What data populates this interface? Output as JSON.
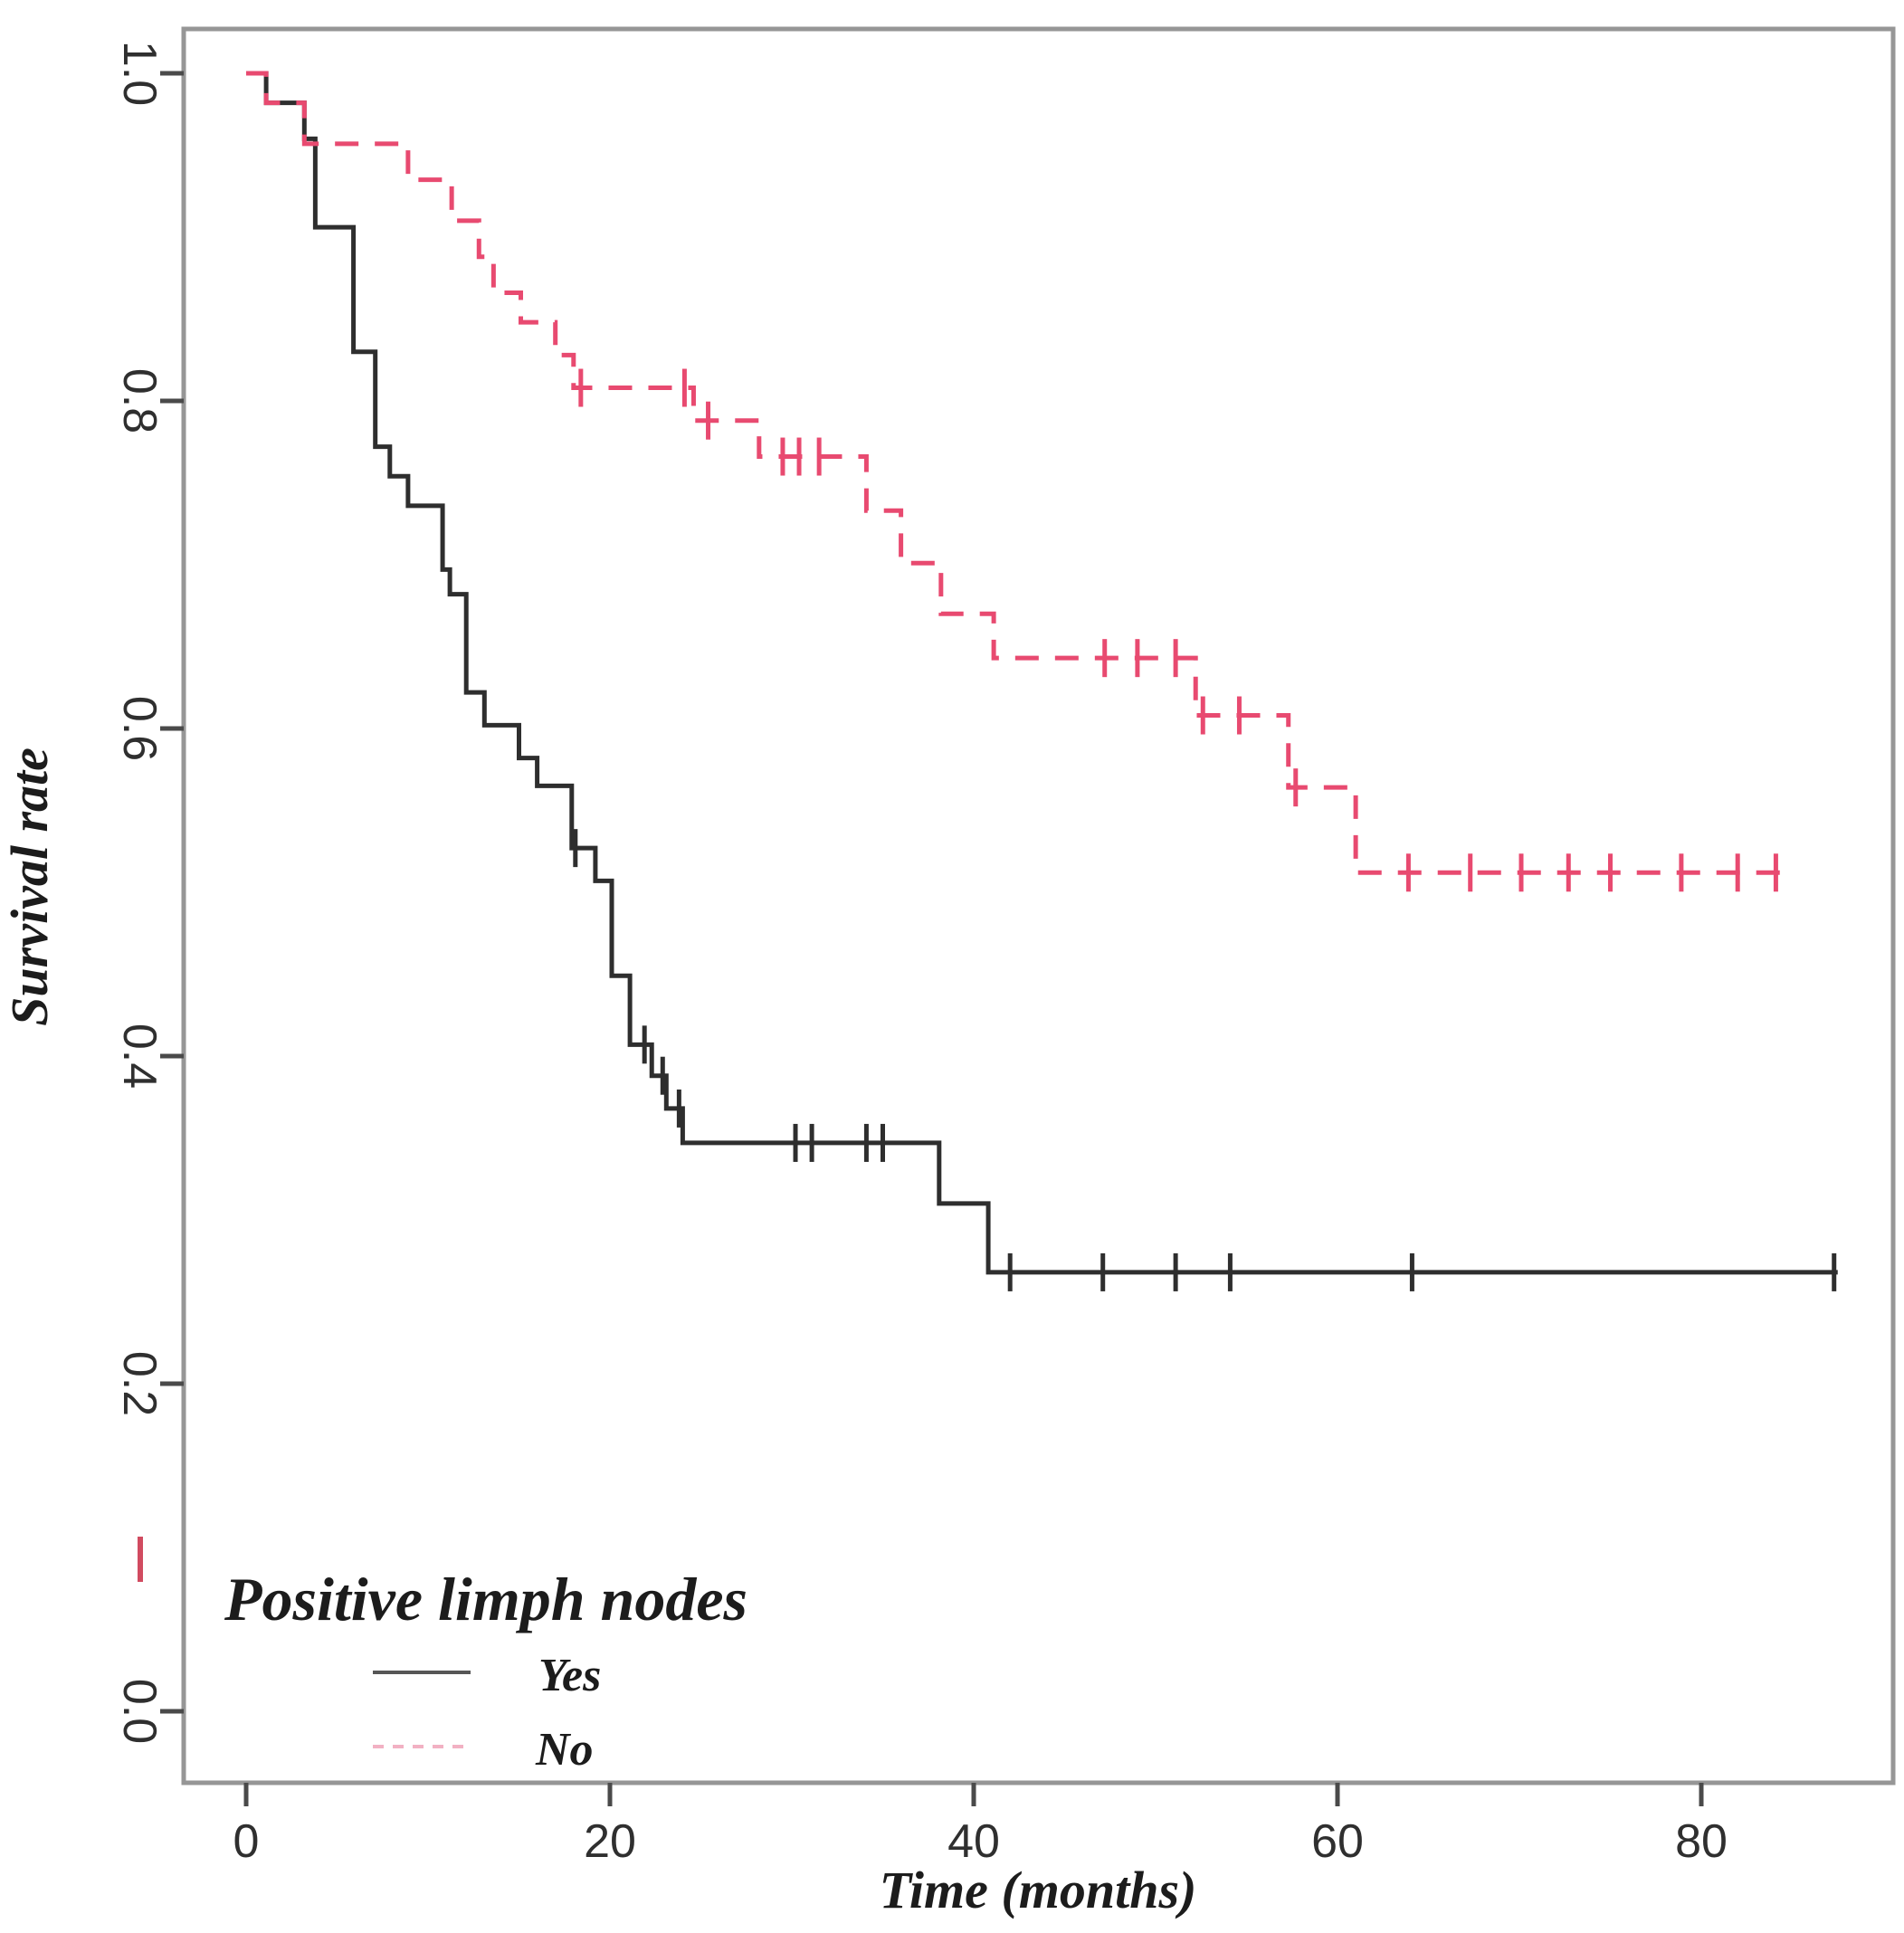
{
  "chart_data": {
    "type": "line",
    "subtype": "kaplan-meier-step",
    "xlabel": "Time (months)",
    "ylabel": "Survival rate",
    "x_tick_labels": [
      "0",
      "20",
      "40",
      "60",
      "80"
    ],
    "x_tick_values": [
      0,
      20,
      40,
      60,
      80
    ],
    "y_tick_labels": [
      "0.0",
      "0.2",
      "0.4",
      "0.6",
      "0.8",
      "1.0"
    ],
    "y_tick_values": [
      0.0,
      0.2,
      0.4,
      0.6,
      0.8,
      1.0
    ],
    "xlim": [
      -3.4,
      90.5
    ],
    "ylim": [
      -0.045,
      1.027
    ],
    "grid": false,
    "legend": {
      "position": "bottom-left",
      "title": "Positive limph nodes",
      "items": [
        {
          "label": "Yes",
          "line_style": "solid",
          "swatch_color": "#565656"
        },
        {
          "label": "No",
          "line_style": "dashed",
          "swatch_color": "#f2b1c3"
        }
      ]
    },
    "series": [
      {
        "name": "Yes",
        "color": "#2e2e2e",
        "line_style": "solid",
        "end_time": 87.5,
        "steps": [
          [
            0,
            1.0
          ],
          [
            1.1,
            0.982
          ],
          [
            3.2,
            0.96
          ],
          [
            3.8,
            0.906
          ],
          [
            5.9,
            0.83
          ],
          [
            7.1,
            0.772
          ],
          [
            7.9,
            0.754
          ],
          [
            8.9,
            0.736
          ],
          [
            10.8,
            0.697
          ],
          [
            11.2,
            0.682
          ],
          [
            12.1,
            0.622
          ],
          [
            13.1,
            0.602
          ],
          [
            15.0,
            0.582
          ],
          [
            16.0,
            0.565
          ],
          [
            17.9,
            0.527
          ],
          [
            19.2,
            0.507
          ],
          [
            20.1,
            0.449
          ],
          [
            21.1,
            0.407
          ],
          [
            22.3,
            0.388
          ],
          [
            23.1,
            0.368
          ],
          [
            24.0,
            0.347
          ],
          [
            38.1,
            0.31
          ],
          [
            40.8,
            0.268
          ]
        ],
        "censors": [
          [
            18.1,
            0.527
          ],
          [
            21.9,
            0.407
          ],
          [
            22.9,
            0.388
          ],
          [
            23.8,
            0.368
          ],
          [
            30.2,
            0.347
          ],
          [
            31.1,
            0.347
          ],
          [
            34.1,
            0.347
          ],
          [
            35.0,
            0.347
          ],
          [
            42.0,
            0.268
          ],
          [
            47.1,
            0.268
          ],
          [
            51.1,
            0.268
          ],
          [
            54.1,
            0.268
          ],
          [
            64.1,
            0.268
          ],
          [
            87.3,
            0.268
          ]
        ]
      },
      {
        "name": "No",
        "color": "#e84a70",
        "line_style": "dashed",
        "end_time": 84.8,
        "steps": [
          [
            0,
            1.0
          ],
          [
            1.1,
            0.982
          ],
          [
            3.2,
            0.957
          ],
          [
            8.9,
            0.935
          ],
          [
            11.3,
            0.91
          ],
          [
            12.8,
            0.888
          ],
          [
            13.6,
            0.866
          ],
          [
            15.1,
            0.848
          ],
          [
            17.0,
            0.828
          ],
          [
            18.0,
            0.808
          ],
          [
            24.6,
            0.788
          ],
          [
            28.2,
            0.766
          ],
          [
            34.1,
            0.733
          ],
          [
            36.0,
            0.701
          ],
          [
            38.2,
            0.67
          ],
          [
            41.1,
            0.643
          ],
          [
            52.2,
            0.608
          ],
          [
            57.3,
            0.564
          ],
          [
            61.0,
            0.512
          ]
        ],
        "censors": [
          [
            18.4,
            0.808
          ],
          [
            24.1,
            0.808
          ],
          [
            25.4,
            0.788
          ],
          [
            29.5,
            0.766
          ],
          [
            30.4,
            0.766
          ],
          [
            31.5,
            0.766
          ],
          [
            47.2,
            0.643
          ],
          [
            49.0,
            0.643
          ],
          [
            51.1,
            0.643
          ],
          [
            52.6,
            0.608
          ],
          [
            54.6,
            0.608
          ],
          [
            57.7,
            0.564
          ],
          [
            63.9,
            0.512
          ],
          [
            67.3,
            0.512
          ],
          [
            70.1,
            0.512
          ],
          [
            72.7,
            0.512
          ],
          [
            75.0,
            0.512
          ],
          [
            78.9,
            0.512
          ],
          [
            82.0,
            0.512
          ],
          [
            84.1,
            0.512
          ]
        ]
      }
    ],
    "colors": {
      "plot_border": "#969696",
      "tick_mark": "#4a4a4a",
      "tick_text": "#2f2f2f",
      "stray_mark": "#d14b60"
    }
  }
}
